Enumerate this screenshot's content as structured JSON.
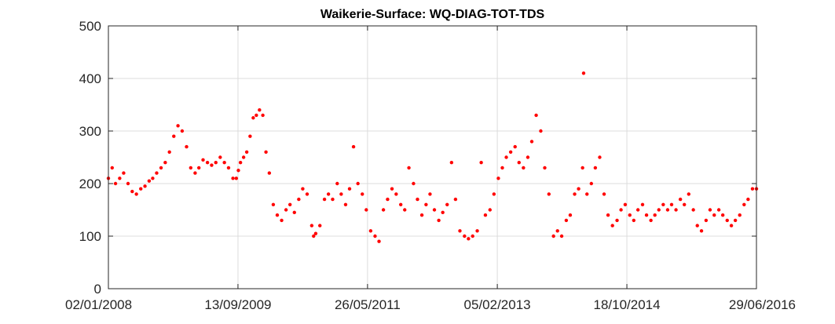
{
  "chart_data": {
    "type": "scatter",
    "title": "Waikerie-Surface: WQ-DIAG-TOT-TDS",
    "xlabel": "",
    "ylabel": "",
    "ylim": [
      0,
      500
    ],
    "xlim": [
      "2008-01-02",
      "2016-06-29"
    ],
    "yticks": [
      0,
      100,
      200,
      300,
      400,
      500
    ],
    "ytick_labels": [
      "0",
      "100",
      "200",
      "300",
      "400",
      "500"
    ],
    "xticks": [
      "2008-01-02",
      "2009-09-13",
      "2011-05-26",
      "2013-02-05",
      "2014-10-18",
      "2016-06-29"
    ],
    "xtick_labels": [
      "02/01/2008",
      "13/09/2009",
      "26/05/2011",
      "05/02/2013",
      "18/10/2014",
      "29/06/2016"
    ],
    "grid": true,
    "marker_color": "#ff0000",
    "series": [
      {
        "x": [
          "2008-01-02",
          "2008-01-20",
          "2008-02-05",
          "2008-02-25",
          "2008-03-15",
          "2008-04-05",
          "2008-04-25",
          "2008-05-15",
          "2008-06-05",
          "2008-06-25",
          "2008-07-15",
          "2008-08-01",
          "2008-08-20",
          "2008-09-10",
          "2008-09-30",
          "2008-10-20",
          "2008-11-10",
          "2008-11-30",
          "2008-12-20",
          "2009-01-10",
          "2009-01-30",
          "2009-02-20",
          "2009-03-10",
          "2009-03-30",
          "2009-04-20",
          "2009-05-10",
          "2009-05-30",
          "2009-06-20",
          "2009-07-10",
          "2009-07-30",
          "2009-08-20",
          "2009-09-05",
          "2009-09-15",
          "2009-09-25",
          "2009-10-10",
          "2009-10-25",
          "2009-11-10",
          "2009-11-25",
          "2009-12-10",
          "2009-12-25",
          "2010-01-10",
          "2010-01-25",
          "2010-02-10",
          "2010-03-01",
          "2010-03-20",
          "2010-04-10",
          "2010-05-01",
          "2010-05-20",
          "2010-06-10",
          "2010-07-01",
          "2010-07-20",
          "2010-08-10",
          "2010-09-01",
          "2010-09-10",
          "2010-09-20",
          "2010-10-10",
          "2010-11-01",
          "2010-11-20",
          "2010-12-10",
          "2011-01-01",
          "2011-01-20",
          "2011-02-10",
          "2011-03-01",
          "2011-03-20",
          "2011-04-10",
          "2011-05-01",
          "2011-05-20",
          "2011-06-10",
          "2011-07-01",
          "2011-07-20",
          "2011-08-10",
          "2011-08-30",
          "2011-09-20",
          "2011-10-10",
          "2011-11-01",
          "2011-11-20",
          "2011-12-10",
          "2012-01-01",
          "2012-01-20",
          "2012-02-10",
          "2012-03-01",
          "2012-03-20",
          "2012-04-10",
          "2012-05-01",
          "2012-05-20",
          "2012-06-10",
          "2012-07-01",
          "2012-07-20",
          "2012-08-10",
          "2012-09-01",
          "2012-09-20",
          "2012-10-10",
          "2012-11-01",
          "2012-11-20",
          "2012-12-10",
          "2013-01-01",
          "2013-01-20",
          "2013-02-10",
          "2013-03-01",
          "2013-03-20",
          "2013-04-10",
          "2013-05-01",
          "2013-05-20",
          "2013-06-10",
          "2013-07-01",
          "2013-07-20",
          "2013-08-10",
          "2013-09-01",
          "2013-09-20",
          "2013-10-10",
          "2013-11-01",
          "2013-11-20",
          "2013-12-10",
          "2014-01-01",
          "2014-01-20",
          "2014-02-10",
          "2014-03-01",
          "2014-03-20",
          "2014-03-25",
          "2014-04-10",
          "2014-05-01",
          "2014-05-20",
          "2014-06-10",
          "2014-07-01",
          "2014-07-20",
          "2014-08-10",
          "2014-09-01",
          "2014-09-20",
          "2014-10-10",
          "2014-11-01",
          "2014-11-20",
          "2014-12-10",
          "2015-01-01",
          "2015-01-20",
          "2015-02-10",
          "2015-03-01",
          "2015-03-20",
          "2015-04-10",
          "2015-05-01",
          "2015-05-20",
          "2015-06-10",
          "2015-07-01",
          "2015-07-20",
          "2015-08-10",
          "2015-09-01",
          "2015-09-20",
          "2015-10-10",
          "2015-11-01",
          "2015-11-20",
          "2015-12-10",
          "2016-01-01",
          "2016-01-20",
          "2016-02-10",
          "2016-03-01",
          "2016-03-20",
          "2016-04-10",
          "2016-05-01",
          "2016-05-20",
          "2016-06-10",
          "2016-06-29"
        ],
        "y": [
          210,
          230,
          200,
          210,
          220,
          200,
          185,
          180,
          190,
          195,
          205,
          210,
          220,
          230,
          240,
          260,
          290,
          310,
          300,
          270,
          230,
          220,
          230,
          245,
          240,
          235,
          240,
          250,
          240,
          230,
          210,
          210,
          225,
          240,
          250,
          260,
          290,
          325,
          330,
          340,
          330,
          260,
          220,
          160,
          140,
          130,
          150,
          160,
          145,
          170,
          190,
          180,
          120,
          100,
          105,
          120,
          170,
          180,
          170,
          200,
          180,
          160,
          190,
          270,
          200,
          180,
          150,
          110,
          100,
          90,
          150,
          170,
          190,
          180,
          160,
          150,
          230,
          200,
          170,
          140,
          160,
          180,
          150,
          130,
          145,
          160,
          240,
          170,
          110,
          100,
          95,
          100,
          110,
          240,
          140,
          150,
          180,
          210,
          230,
          250,
          260,
          270,
          240,
          230,
          250,
          280,
          330,
          300,
          230,
          180,
          100,
          110,
          100,
          130,
          140,
          180,
          190,
          230,
          410,
          180,
          200,
          230,
          250,
          180,
          140,
          120,
          130,
          150,
          160,
          140,
          130,
          150,
          160,
          140,
          130,
          140,
          150,
          160,
          150,
          160,
          150,
          170,
          160,
          180,
          150,
          120,
          110,
          130,
          150,
          140,
          150,
          140,
          130,
          120,
          130,
          140,
          160,
          170,
          190,
          190
        ]
      }
    ]
  }
}
